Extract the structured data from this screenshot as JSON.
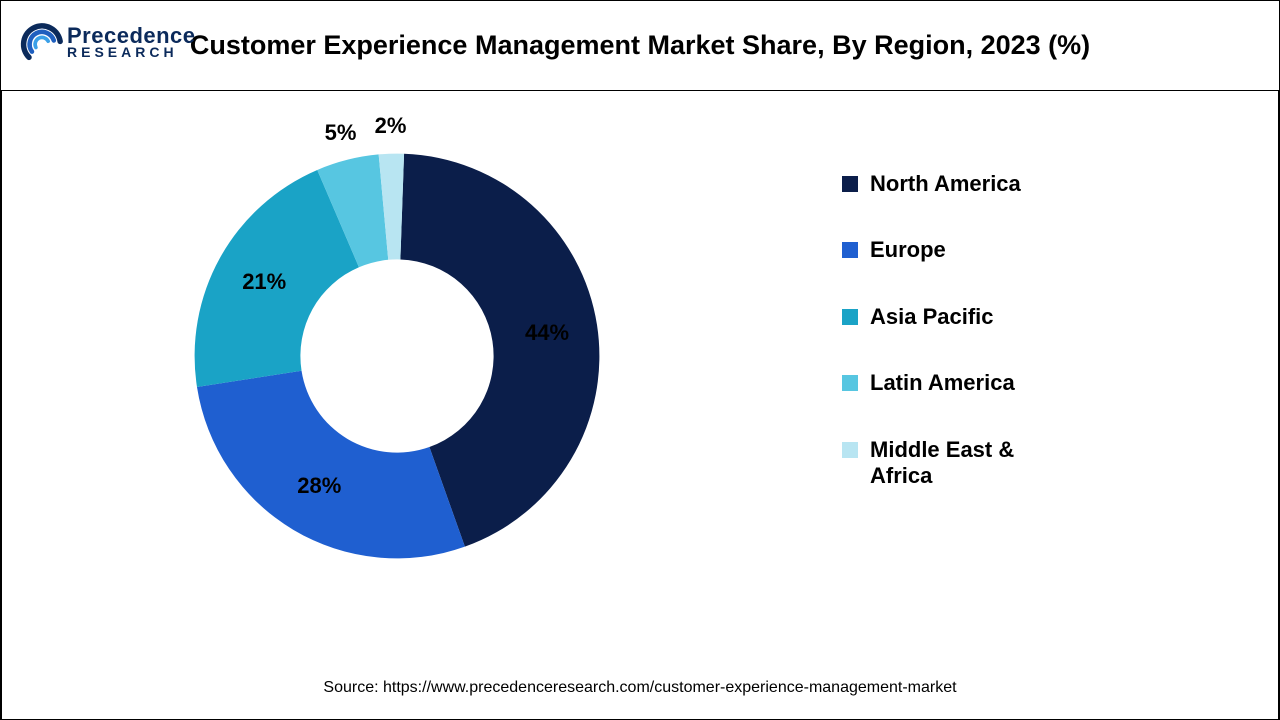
{
  "brand": {
    "name_line1": "Precedence",
    "name_line2": "RESEARCH",
    "mark_color_outer": "#0b2a5b",
    "mark_color_mid": "#1f5fbf",
    "mark_color_inner": "#3aa0e8"
  },
  "chart": {
    "type": "donut",
    "title": "Customer Experience Management Market Share, By Region, 2023 (%)",
    "title_fontsize": 27,
    "title_color": "#000000",
    "background_color": "#ffffff",
    "border_color": "#000000",
    "donut_outer_radius": 220,
    "donut_inner_radius": 105,
    "start_angle_deg": 2,
    "label_fontsize": 22,
    "label_color": "#000000",
    "label_radius": 165,
    "small_slice_label_radius": 250,
    "small_slice_threshold": 8,
    "legend_fontsize": 22,
    "legend_swatch_size": 16,
    "series": [
      {
        "name": "North America",
        "value": 44,
        "color": "#0b1e4a"
      },
      {
        "name": "Europe",
        "value": 28,
        "color": "#1f5fd0"
      },
      {
        "name": "Asia Pacific",
        "value": 21,
        "color": "#1aa3c6"
      },
      {
        "name": "Latin America",
        "value": 5,
        "color": "#57c6e1"
      },
      {
        "name": "Middle East & Africa",
        "value": 2,
        "color": "#b8e5f2"
      }
    ],
    "source_text": "Source: https://www.precedenceresearch.com/customer-experience-management-market",
    "source_fontsize": 16,
    "source_color": "#000000"
  }
}
